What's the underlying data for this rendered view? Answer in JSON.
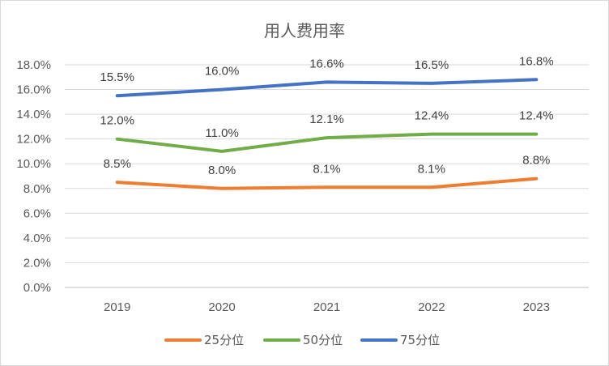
{
  "chart_data": {
    "type": "line",
    "title": "用人费用率",
    "xlabel": "",
    "ylabel": "",
    "categories": [
      "2019",
      "2020",
      "2021",
      "2022",
      "2023"
    ],
    "ylim": [
      0,
      18
    ],
    "yticks": [
      "0.0%",
      "2.0%",
      "4.0%",
      "6.0%",
      "8.0%",
      "10.0%",
      "12.0%",
      "14.0%",
      "16.0%",
      "18.0%"
    ],
    "grid": true,
    "legend_position": "bottom",
    "series": [
      {
        "name": "25分位",
        "color": "#ED7D31",
        "values": [
          8.5,
          8.0,
          8.1,
          8.1,
          8.8
        ],
        "labels": [
          "8.5%",
          "8.0%",
          "8.1%",
          "8.1%",
          "8.8%"
        ]
      },
      {
        "name": "50分位",
        "color": "#70AD47",
        "values": [
          12.0,
          11.0,
          12.1,
          12.4,
          12.4
        ],
        "labels": [
          "12.0%",
          "11.0%",
          "12.1%",
          "12.4%",
          "12.4%"
        ]
      },
      {
        "name": "75分位",
        "color": "#4472C4",
        "values": [
          15.5,
          16.0,
          16.6,
          16.5,
          16.8
        ],
        "labels": [
          "15.5%",
          "16.0%",
          "16.6%",
          "16.5%",
          "16.8%"
        ]
      }
    ]
  }
}
